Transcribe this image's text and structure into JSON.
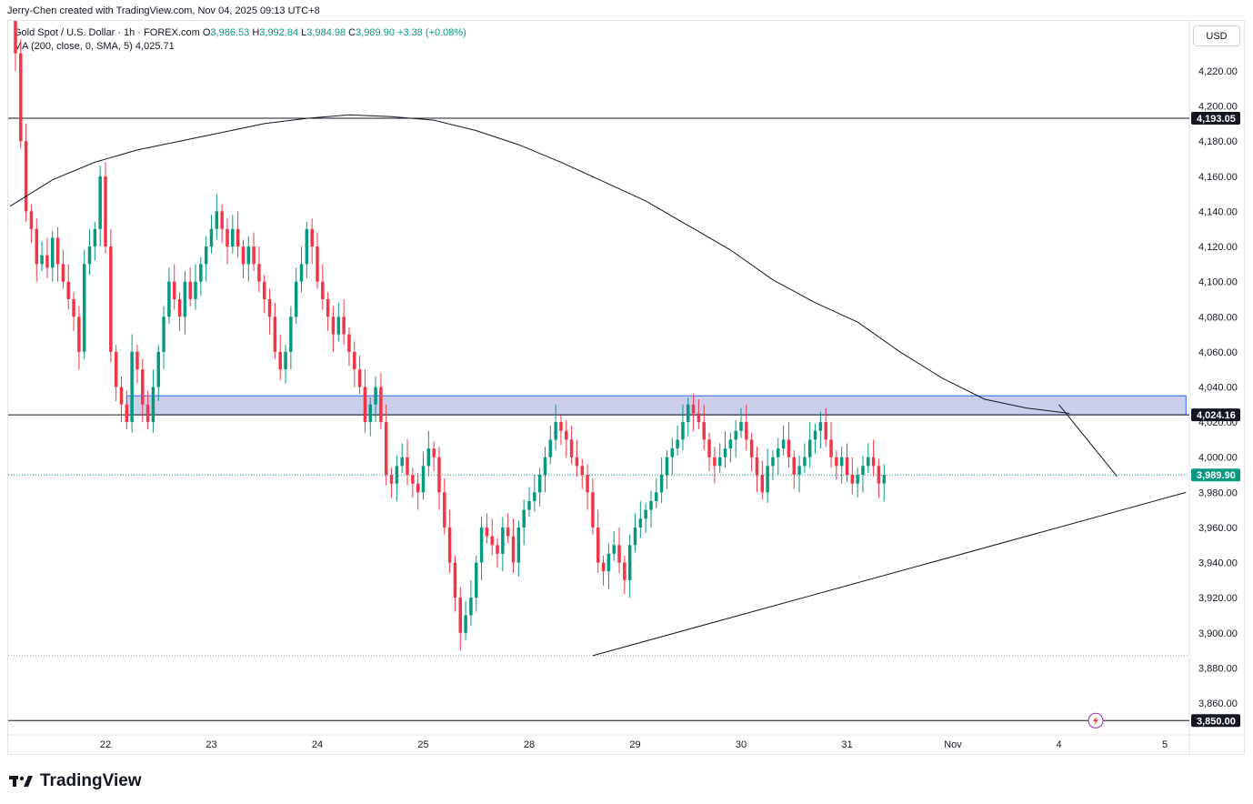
{
  "header": {
    "credit": "Jerry-Chen created with TradingView.com, Nov 04, 2025 09:13 UTC+8"
  },
  "legend": {
    "symbol": "Gold Spot / U.S. Dollar · 1h · FOREX.com",
    "open_label": "O",
    "open": "3,986.53",
    "high_label": "H",
    "high": "3,992.84",
    "low_label": "L",
    "low": "3,984.98",
    "close_label": "C",
    "close": "3,989.90",
    "change": "+3.38 (+0.08%)",
    "ma_label": "MA (200, close, 0, SMA, 5)",
    "ma_value": "4,025.71"
  },
  "currency_button": "USD",
  "footer": {
    "brand": "TradingView"
  },
  "colors": {
    "up": "#089981",
    "down": "#f23645",
    "zone_fill": "#c5cae9",
    "zone_border": "#2962ff",
    "line": "#131722",
    "current_tag": "#089981"
  },
  "chart_data": {
    "type": "candlestick",
    "title": "Gold Spot / U.S. Dollar · 1h · FOREX.com",
    "ylim": [
      3840,
      4250
    ],
    "y_ticks": [
      3860,
      3880,
      3900,
      3920,
      3940,
      3960,
      3980,
      4000,
      4020,
      4040,
      4060,
      4080,
      4100,
      4120,
      4140,
      4160,
      4180,
      4200,
      4220
    ],
    "y_tick_labels": [
      "3,860.00",
      "3,880.00",
      "3,900.00",
      "3,920.00",
      "3,940.00",
      "3,960.00",
      "3,980.00",
      "4,000.00",
      "4,020.00",
      "4,040.00",
      "4,060.00",
      "4,080.00",
      "4,100.00",
      "4,120.00",
      "4,140.00",
      "4,160.00",
      "4,180.00",
      "4,200.00",
      "4,220.00"
    ],
    "x_labels": [
      "22",
      "23",
      "24",
      "25",
      "28",
      "29",
      "30",
      "31",
      "Nov",
      "4",
      "5"
    ],
    "x_label_index": [
      18,
      38,
      58,
      78,
      98,
      118,
      138,
      158,
      178,
      198,
      218
    ],
    "x_range": [
      0,
      220
    ],
    "closes": [
      4255,
      4230,
      4180,
      4140,
      4130,
      4110,
      4115,
      4108,
      4125,
      4110,
      4100,
      4090,
      4080,
      4060,
      4110,
      4120,
      4130,
      4160,
      4120,
      4060,
      4040,
      4030,
      4020,
      4060,
      4050,
      4030,
      4020,
      4040,
      4060,
      4080,
      4100,
      4090,
      4080,
      4100,
      4090,
      4100,
      4110,
      4120,
      4130,
      4140,
      4130,
      4120,
      4130,
      4120,
      4110,
      4120,
      4110,
      4100,
      4090,
      4080,
      4060,
      4050,
      4060,
      4080,
      4100,
      4110,
      4130,
      4120,
      4100,
      4090,
      4080,
      4070,
      4080,
      4070,
      4060,
      4050,
      4040,
      4020,
      4030,
      4040,
      4020,
      3990,
      3985,
      3995,
      4000,
      3990,
      3985,
      3980,
      3995,
      4005,
      4000,
      3980,
      3960,
      3940,
      3920,
      3900,
      3910,
      3920,
      3940,
      3960,
      3955,
      3950,
      3945,
      3960,
      3955,
      3940,
      3960,
      3970,
      3975,
      3980,
      3990,
      4000,
      4010,
      4020,
      4015,
      4010,
      4000,
      3995,
      3990,
      3980,
      3960,
      3940,
      3935,
      3945,
      3950,
      3940,
      3930,
      3950,
      3960,
      3965,
      3970,
      3975,
      3980,
      3990,
      4000,
      4005,
      4010,
      4020,
      4030,
      4025,
      4020,
      4010,
      4000,
      3995,
      4000,
      4005,
      4010,
      4015,
      4020,
      4010,
      4000,
      3990,
      3980,
      3995,
      4000,
      4005,
      4010,
      4000,
      3990,
      3995,
      4000,
      4010,
      4015,
      4020,
      4010,
      4000,
      3995,
      4000,
      3990,
      3985,
      3990,
      3995,
      4000,
      3995,
      3985,
      3990
    ],
    "ma200": [
      [
        0,
        4143
      ],
      [
        8,
        4158
      ],
      [
        16,
        4168
      ],
      [
        24,
        4175
      ],
      [
        32,
        4180
      ],
      [
        40,
        4185
      ],
      [
        48,
        4190
      ],
      [
        56,
        4193
      ],
      [
        64,
        4195
      ],
      [
        72,
        4194
      ],
      [
        80,
        4192
      ],
      [
        88,
        4186
      ],
      [
        96,
        4178
      ],
      [
        104,
        4168
      ],
      [
        112,
        4157
      ],
      [
        120,
        4146
      ],
      [
        128,
        4132
      ],
      [
        136,
        4118
      ],
      [
        144,
        4101
      ],
      [
        152,
        4088
      ],
      [
        160,
        4077
      ],
      [
        168,
        4060
      ],
      [
        176,
        4045
      ],
      [
        184,
        4033
      ],
      [
        192,
        4028
      ],
      [
        200,
        4025
      ]
    ],
    "horizontal_levels": [
      {
        "value": 4193.05,
        "label": "4,193.05",
        "style": "solid"
      },
      {
        "value": 4024.16,
        "label": "4,024.16",
        "style": "solid"
      },
      {
        "value": 3850.0,
        "label": "3,850.00",
        "style": "solid"
      },
      {
        "value": 3887,
        "label": "",
        "style": "dotted"
      }
    ],
    "current_price": {
      "value": 3989.9,
      "label": "3,989.90"
    },
    "zone": {
      "x0": 22,
      "x1": 222,
      "y0": 4024.16,
      "y1": 4035
    },
    "trendlines": [
      {
        "x0": 110,
        "y0": 3887,
        "x1": 222,
        "y1": 3980
      },
      {
        "x0": 198,
        "y0": 4030,
        "x1": 209,
        "y1": 3989
      }
    ]
  }
}
